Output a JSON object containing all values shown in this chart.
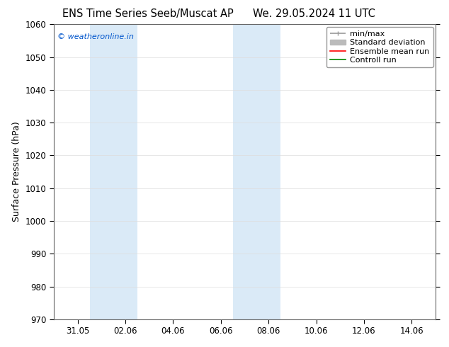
{
  "title1": "ENS Time Series Seeb/Muscat AP",
  "title2": "We. 29.05.2024 11 UTC",
  "ylabel": "Surface Pressure (hPa)",
  "ylim": [
    970,
    1060
  ],
  "yticks": [
    970,
    980,
    990,
    1000,
    1010,
    1020,
    1030,
    1040,
    1050,
    1060
  ],
  "x_tick_labels": [
    "31.05",
    "02.06",
    "04.06",
    "06.06",
    "08.06",
    "10.06",
    "12.06",
    "14.06"
  ],
  "x_tick_positions": [
    1,
    3,
    5,
    7,
    9,
    11,
    13,
    15
  ],
  "xlim": [
    0,
    16
  ],
  "shade_bands": [
    {
      "xmin": 1.5,
      "xmax": 3.5
    },
    {
      "xmin": 7.5,
      "xmax": 9.5
    }
  ],
  "shade_color": "#daeaf7",
  "watermark_text": "© weatheronline.in",
  "watermark_color": "#0055cc",
  "background_color": "#ffffff",
  "plot_bg_color": "#ffffff",
  "legend_entries": [
    {
      "label": "min/max",
      "color": "#999999",
      "lw": 1.2
    },
    {
      "label": "Standard deviation",
      "color": "#bbbbbb",
      "lw": 5
    },
    {
      "label": "Ensemble mean run",
      "color": "#ff0000",
      "lw": 1.2
    },
    {
      "label": "Controll run",
      "color": "#008800",
      "lw": 1.2
    }
  ],
  "title_fontsize": 10.5,
  "tick_fontsize": 8.5,
  "ylabel_fontsize": 9,
  "legend_fontsize": 8
}
